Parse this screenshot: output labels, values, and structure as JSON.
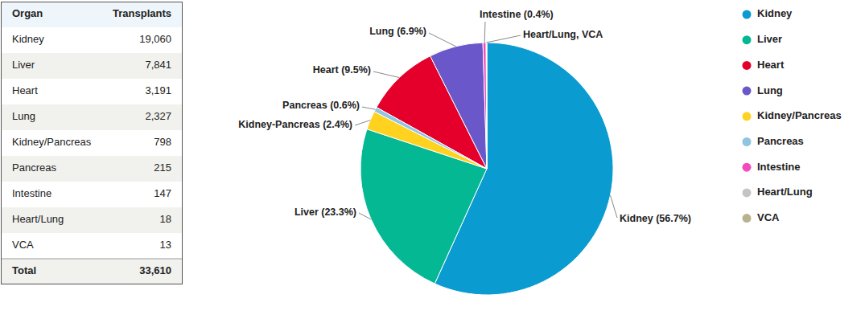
{
  "chart_data": {
    "type": "pie",
    "categories": [
      "Kidney",
      "Liver",
      "Heart",
      "Lung",
      "Kidney/Pancreas",
      "Pancreas",
      "Intestine",
      "Heart/Lung",
      "VCA"
    ],
    "values": [
      56.7,
      23.3,
      9.5,
      6.9,
      2.4,
      0.6,
      0.4,
      0.05,
      0.04
    ],
    "value_labels": [
      "Kidney (56.7%)",
      "Liver (23.3%)",
      "Heart (9.5%)",
      "Lung (6.9%)",
      "Kidney-Pancreas (2.4%)",
      "Pancreas (0.6%)",
      "Intestine (0.4%)",
      "Heart/Lung, VCA",
      null
    ],
    "colors": [
      "#0a9bd0",
      "#05b894",
      "#e4002b",
      "#6a57c9",
      "#ffd21f",
      "#8fc4e2",
      "#f24bbd",
      "#c4c4c4",
      "#b8b38e"
    ],
    "data_labels": true,
    "legend": "right"
  },
  "table": {
    "header": [
      "Organ",
      "Transplants"
    ],
    "rows": [
      [
        "Kidney",
        "19,060"
      ],
      [
        "Liver",
        "7,841"
      ],
      [
        "Heart",
        "3,191"
      ],
      [
        "Lung",
        "2,327"
      ],
      [
        "Kidney/Pancreas",
        "798"
      ],
      [
        "Pancreas",
        "215"
      ],
      [
        "Intestine",
        "147"
      ],
      [
        "Heart/Lung",
        "18"
      ],
      [
        "VCA",
        "13"
      ]
    ],
    "footer": [
      "Total",
      "33,610"
    ]
  }
}
